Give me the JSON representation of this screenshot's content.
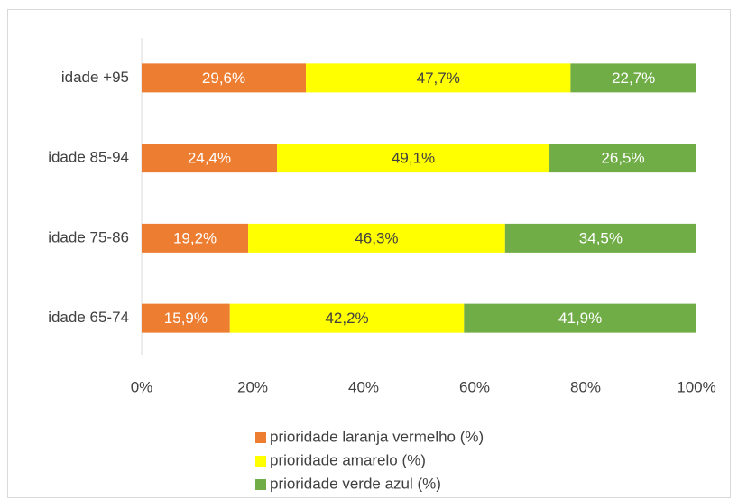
{
  "chart_data": {
    "type": "stacked-bar-horizontal",
    "categories": [
      "idade +95",
      "idade 85-94",
      "idade 75-86",
      "idade 65-74"
    ],
    "series": [
      {
        "name": "prioridade laranja vermelho (%)",
        "color": "#ed7d31",
        "values": [
          29.6,
          24.4,
          19.2,
          15.9
        ],
        "value_labels": [
          "29,6%",
          "24,4%",
          "19,2%",
          "15,9%"
        ]
      },
      {
        "name": "prioridade amarelo (%)",
        "color": "#ffff00",
        "values": [
          47.7,
          49.1,
          46.3,
          42.2
        ],
        "value_labels": [
          "47,7%",
          "49,1%",
          "46,3%",
          "42,2%"
        ]
      },
      {
        "name": "prioridade verde azul (%)",
        "color": "#70ad47",
        "values": [
          22.7,
          26.5,
          34.5,
          41.9
        ],
        "value_labels": [
          "22,7%",
          "26,5%",
          "34,5%",
          "41,9%"
        ]
      }
    ],
    "xlim": [
      0,
      100
    ],
    "xticks": [
      {
        "value": 0,
        "label": "0%"
      },
      {
        "value": 20,
        "label": "20%"
      },
      {
        "value": 40,
        "label": "40%"
      },
      {
        "value": 60,
        "label": "60%"
      },
      {
        "value": 80,
        "label": "80%"
      },
      {
        "value": 100,
        "label": "100%"
      }
    ],
    "legend": "bottom"
  }
}
